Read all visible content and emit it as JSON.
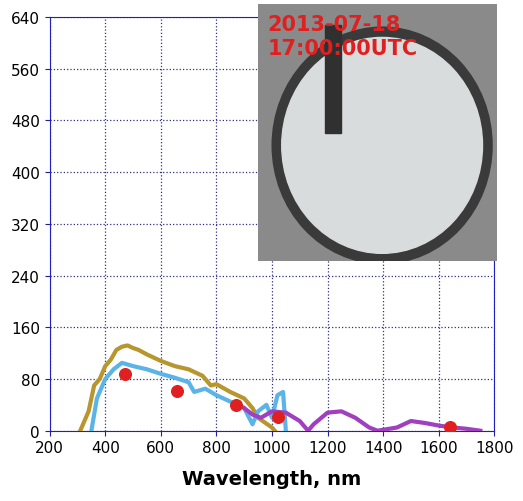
{
  "chart_data": {
    "type": "line",
    "xlabel": "Wavelength, nm",
    "xlim": [
      200,
      1800
    ],
    "ylim": [
      0,
      640
    ],
    "xticks": [
      200,
      400,
      600,
      800,
      1000,
      1200,
      1400,
      1600,
      1800
    ],
    "yticks": [
      0,
      80,
      160,
      240,
      320,
      400,
      480,
      560,
      640
    ],
    "grid": true,
    "annotations": [
      "2013-07-18",
      "17:00:00UTC"
    ],
    "series": [
      {
        "type": "line",
        "color": "#b8962e",
        "line_style": "solid",
        "x": [
          310,
          340,
          360,
          380,
          400,
          420,
          440,
          460,
          480,
          500,
          520,
          550,
          600,
          650,
          700,
          750,
          780,
          800,
          850,
          900,
          930,
          950,
          1000,
          1010
        ],
        "values": [
          0,
          30,
          70,
          80,
          100,
          110,
          125,
          130,
          132,
          128,
          125,
          118,
          108,
          100,
          95,
          85,
          70,
          72,
          60,
          50,
          35,
          20,
          5,
          0
        ]
      },
      {
        "type": "line",
        "color": "#5ab4e8",
        "line_style": "solid",
        "x": [
          350,
          370,
          400,
          430,
          460,
          500,
          550,
          600,
          650,
          700,
          720,
          760,
          800,
          850,
          900,
          930,
          950,
          980,
          1000,
          1020,
          1040,
          1050
        ],
        "values": [
          0,
          50,
          80,
          95,
          105,
          100,
          95,
          88,
          82,
          75,
          60,
          65,
          55,
          45,
          35,
          10,
          30,
          40,
          20,
          55,
          60,
          0
        ]
      },
      {
        "type": "line",
        "color": "#a040c0",
        "line_style": "solid",
        "x": [
          900,
          930,
          960,
          1000,
          1050,
          1100,
          1130,
          1150,
          1200,
          1250,
          1300,
          1350,
          1380,
          1450,
          1500,
          1550,
          1600,
          1650,
          1700,
          1750
        ],
        "values": [
          35,
          25,
          20,
          30,
          28,
          15,
          0,
          10,
          28,
          30,
          20,
          5,
          0,
          5,
          15,
          12,
          8,
          5,
          3,
          0
        ]
      },
      {
        "type": "scatter",
        "color": "#e02020",
        "marker": "o",
        "x": [
          470,
          660,
          870,
          1020,
          1640
        ],
        "values": [
          88,
          62,
          40,
          22,
          5
        ]
      }
    ]
  }
}
